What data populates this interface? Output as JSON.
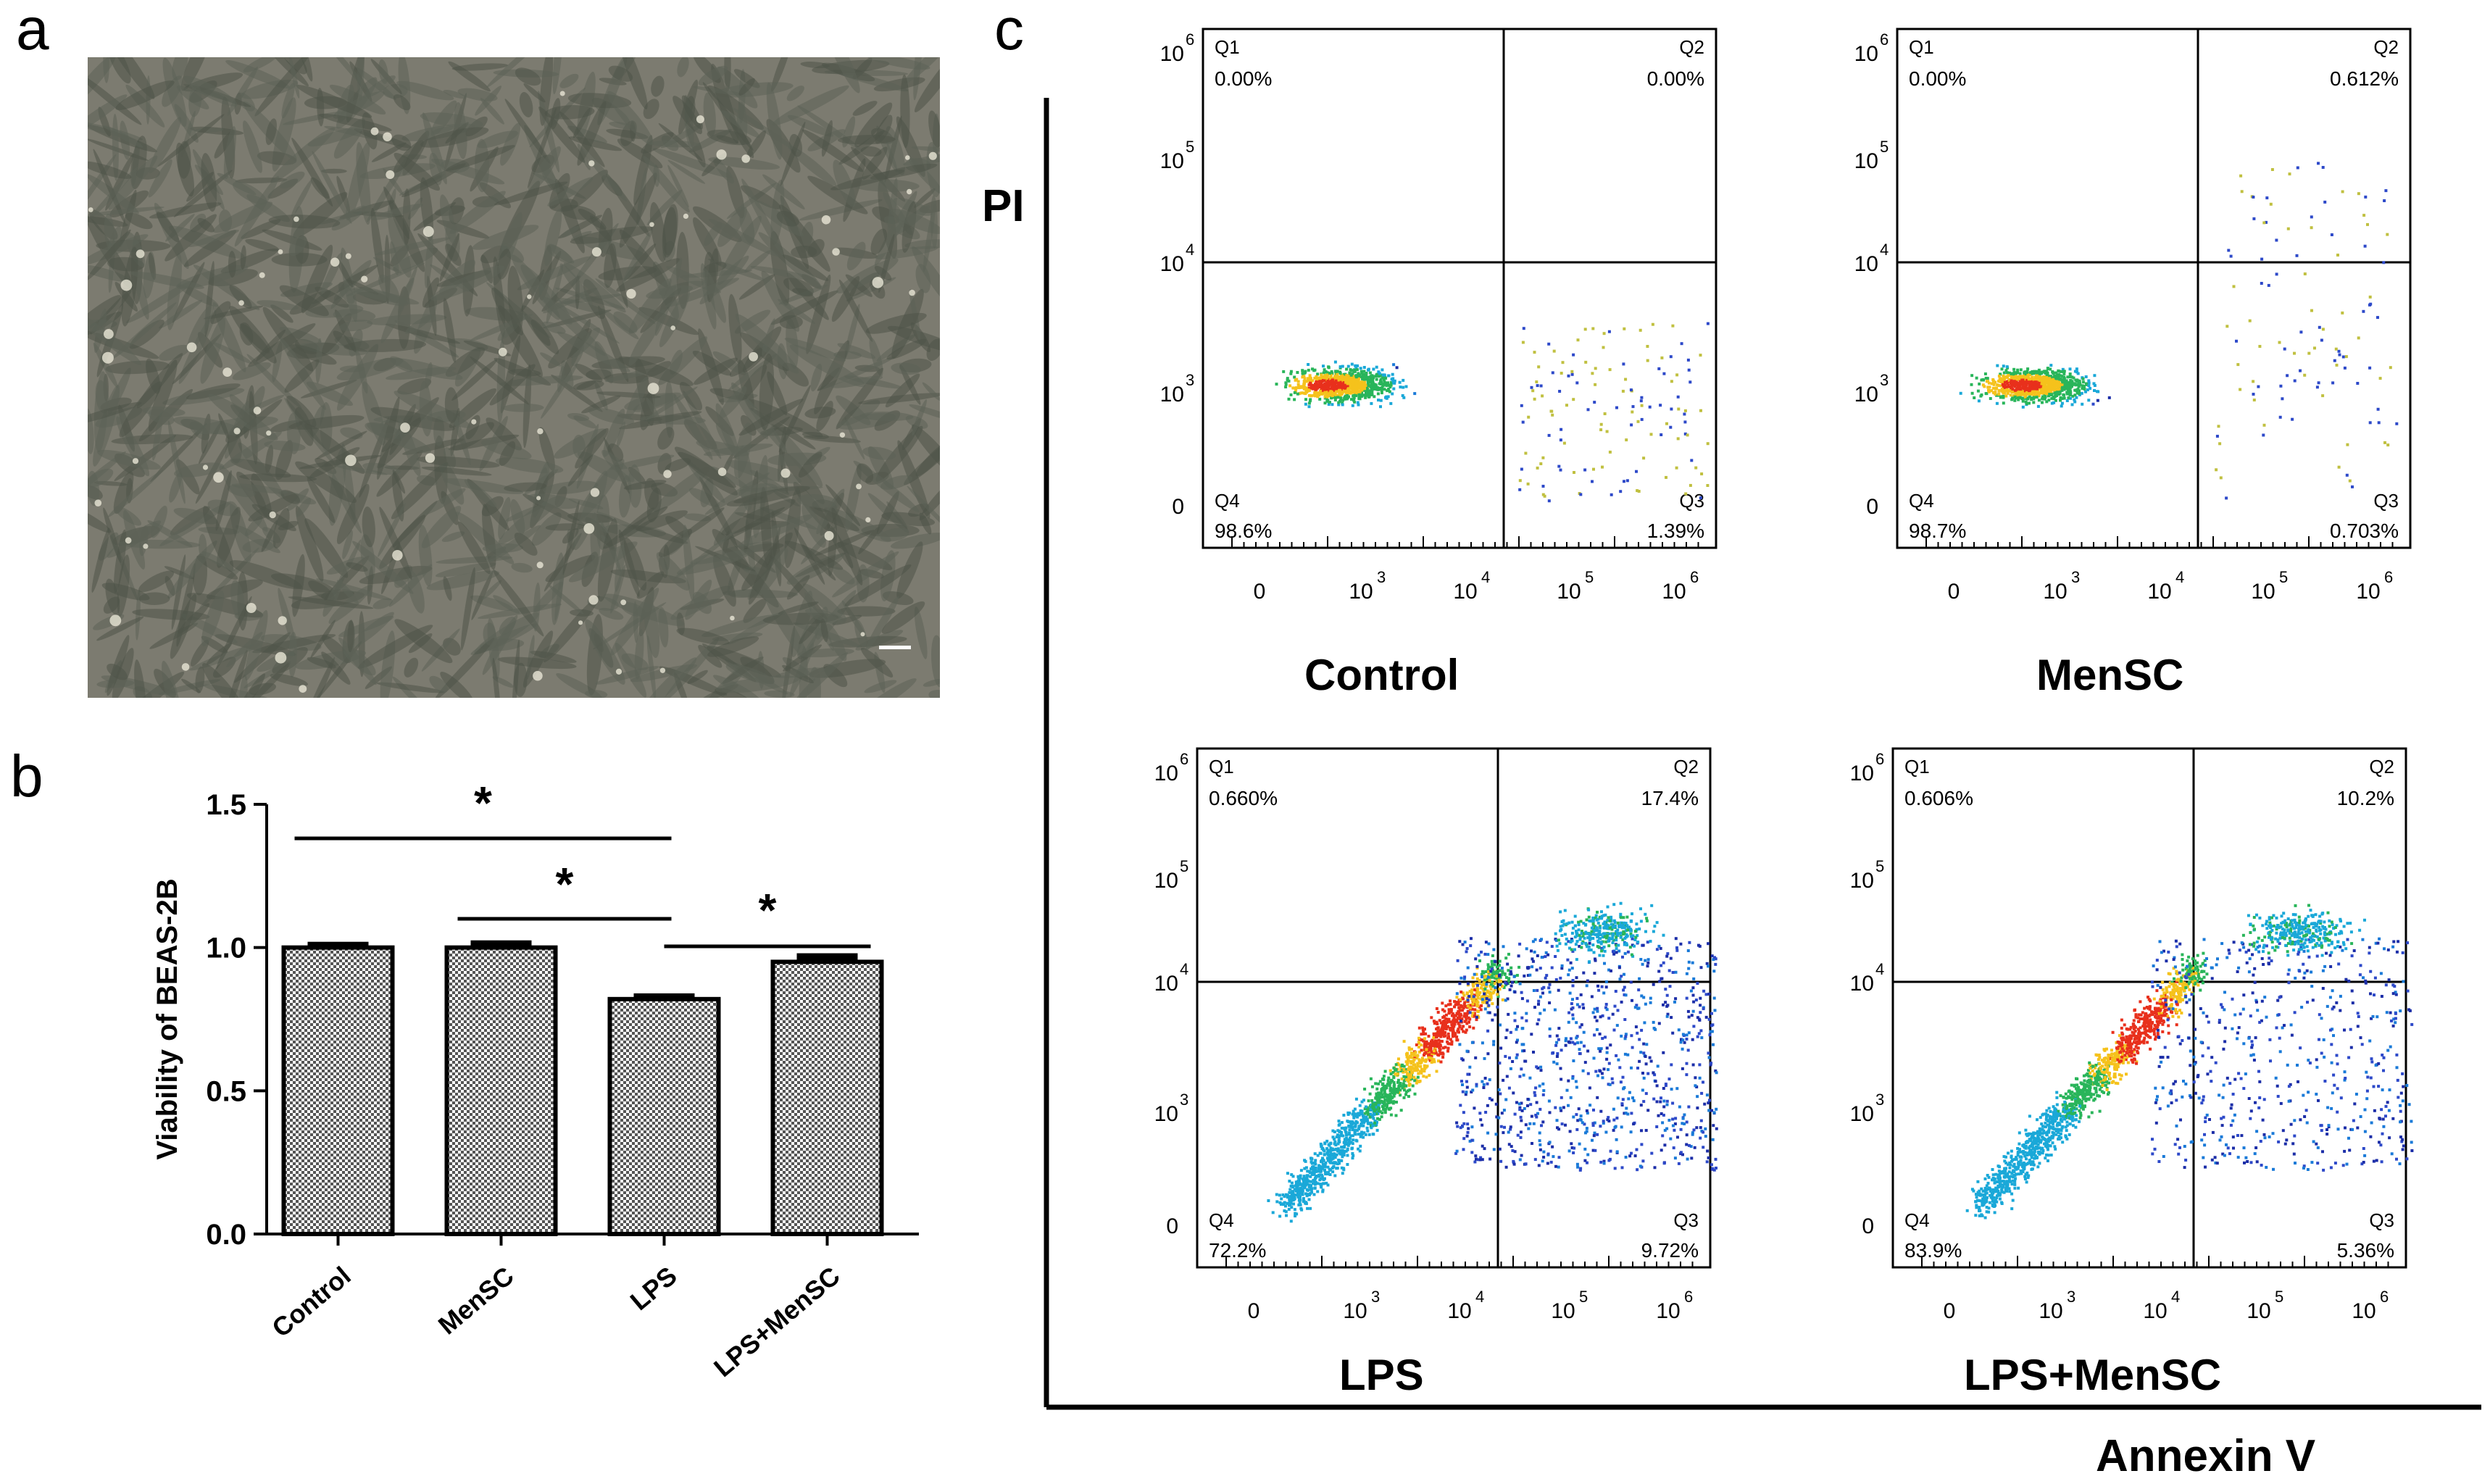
{
  "panels": {
    "a": "a",
    "b": "b",
    "c": "c"
  },
  "chart_data": {
    "type": "bar",
    "categories": [
      "Control",
      "MenSC",
      "LPS",
      "LPS+MenSC"
    ],
    "values": [
      1.0,
      1.0,
      0.82,
      0.95
    ],
    "errors": [
      0.01,
      0.015,
      0.01,
      0.02
    ],
    "ylabel": "Viability of BEAS-2B",
    "xlabel": "",
    "ylim": [
      0,
      1.5
    ],
    "yticks": [
      "0.0",
      "0.5",
      "1.0",
      "1.5"
    ],
    "significance": [
      {
        "from": "Control",
        "to": "LPS",
        "label": "*"
      },
      {
        "from": "MenSC",
        "to": "LPS",
        "label": "*"
      },
      {
        "from": "LPS",
        "to": "LPS+MenSC",
        "label": "*"
      }
    ]
  },
  "flow": {
    "y_axis_title": "PI",
    "x_axis_title": "Annexin V",
    "plots": [
      {
        "name": "Control",
        "q1": "0.00%",
        "q2": "0.00%",
        "q3": "1.39%",
        "q4": "98.6%"
      },
      {
        "name": "MenSC",
        "q1": "0.00%",
        "q2": "0.612%",
        "q3": "0.703%",
        "q4": "98.7%"
      },
      {
        "name": "LPS",
        "q1": "0.660%",
        "q2": "17.4%",
        "q3": "9.72%",
        "q4": "72.2%"
      },
      {
        "name": "LPS+MenSC",
        "q1": "0.606%",
        "q2": "10.2%",
        "q3": "5.36%",
        "q4": "83.9%"
      }
    ],
    "quadrant_labels": [
      "Q1",
      "Q2",
      "Q3",
      "Q4"
    ],
    "y_ticks": [
      {
        "base": "10",
        "exp": "6"
      },
      {
        "base": "10",
        "exp": "5"
      },
      {
        "base": "10",
        "exp": "4"
      },
      {
        "base": "10",
        "exp": "3"
      },
      {
        "base": "0",
        "exp": ""
      }
    ],
    "x_ticks": [
      {
        "base": "0",
        "exp": ""
      },
      {
        "base": "10",
        "exp": "3"
      },
      {
        "base": "10",
        "exp": "4"
      },
      {
        "base": "10",
        "exp": "5"
      },
      {
        "base": "10",
        "exp": "6"
      }
    ]
  },
  "colors": {
    "bar_fill": "#d8d8d8",
    "density_hot": "#e8301c",
    "density_cold": "#1c2ea8",
    "micrograph_bg": "#7c7b70"
  }
}
